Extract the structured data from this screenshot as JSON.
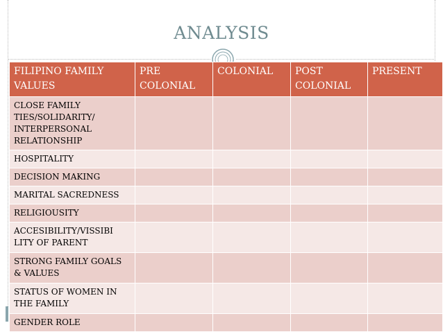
{
  "slide": {
    "title": "ANALYSIS"
  },
  "table": {
    "headers": [
      "FILIPINO FAMILY VALUES",
      "PRE COLONIAL",
      "COLONIAL",
      "POST COLONIAL",
      "PRESENT"
    ],
    "rows": [
      "CLOSE FAMILY TIES/SOLIDARITY/ INTERPERSONAL RELATIONSHIP",
      "HOSPITALITY",
      "DECISION MAKING",
      "MARITAL SACREDNESS",
      "RELIGIOUSITY",
      "ACCESIBILITY/VISSIBI LITY OF PARENT",
      "STRONG FAMILY GOALS & VALUES",
      "STATUS OF WOMEN IN THE FAMILY",
      "GENDER ROLE"
    ]
  },
  "colors": {
    "header_bg": "#d0634a",
    "row_odd": "#ebcfcb",
    "row_even": "#f5e8e6",
    "title": "#6f8b90"
  },
  "icons": [
    "circle-ornament-icon"
  ]
}
